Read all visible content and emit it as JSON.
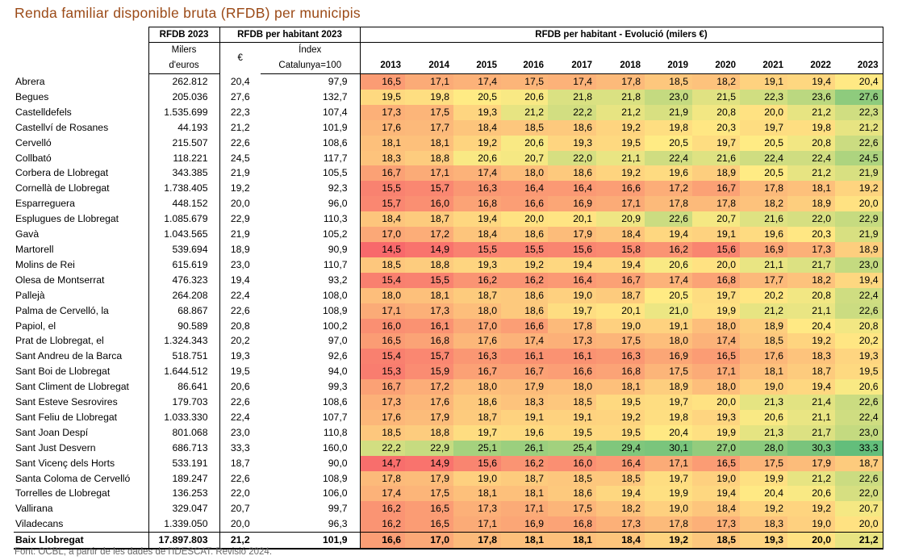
{
  "title": "Renda familiar disponible bruta (RFDB) per municipis",
  "source": "Font: OCBL, a partir de les dades de l'IDESCAT. Revisió 2024.",
  "headers": {
    "rfdb_2023": "RFDB 2023",
    "rfdb_hab_2023": "RFDB per habitant 2023",
    "evolucio": "RFDB per habitant - Evolució (milers €)",
    "milers": "Milers",
    "deuros": "d'euros",
    "euro": "€",
    "index": "Índex",
    "catalunya": "Catalunya=100",
    "years": [
      "2013",
      "2014",
      "2015",
      "2016",
      "2017",
      "2018",
      "2019",
      "2020",
      "2021",
      "2022",
      "2023"
    ]
  },
  "rows": [
    {
      "name": "Abrera",
      "rfdb": "262.812",
      "eur": "20,4",
      "idx": "97,9",
      "evo": [
        "16,5",
        "17,1",
        "17,4",
        "17,5",
        "17,4",
        "17,8",
        "18,5",
        "18,2",
        "19,1",
        "19,4",
        "20,4"
      ]
    },
    {
      "name": "Begues",
      "rfdb": "205.036",
      "eur": "27,6",
      "idx": "132,7",
      "evo": [
        "19,5",
        "19,8",
        "20,5",
        "20,6",
        "21,8",
        "21,8",
        "23,0",
        "21,5",
        "22,3",
        "23,6",
        "27,6"
      ]
    },
    {
      "name": "Castelldefels",
      "rfdb": "1.535.699",
      "eur": "22,3",
      "idx": "107,4",
      "evo": [
        "17,3",
        "17,5",
        "19,3",
        "21,2",
        "22,2",
        "21,2",
        "21,9",
        "20,8",
        "20,0",
        "21,2",
        "22,3"
      ]
    },
    {
      "name": "Castellví de Rosanes",
      "rfdb": "44.193",
      "eur": "21,2",
      "idx": "101,9",
      "evo": [
        "17,6",
        "17,7",
        "18,4",
        "18,5",
        "18,6",
        "19,2",
        "19,8",
        "20,3",
        "19,7",
        "19,8",
        "21,2"
      ]
    },
    {
      "name": "Cervelló",
      "rfdb": "215.507",
      "eur": "22,6",
      "idx": "108,6",
      "evo": [
        "18,1",
        "18,1",
        "19,2",
        "20,6",
        "19,3",
        "19,5",
        "20,5",
        "19,7",
        "20,5",
        "20,8",
        "22,6"
      ]
    },
    {
      "name": "Collbató",
      "rfdb": "118.221",
      "eur": "24,5",
      "idx": "117,7",
      "evo": [
        "18,3",
        "18,8",
        "20,6",
        "20,7",
        "22,0",
        "21,1",
        "22,4",
        "21,6",
        "22,4",
        "22,4",
        "24,5"
      ]
    },
    {
      "name": "Corbera de Llobregat",
      "rfdb": "343.385",
      "eur": "21,9",
      "idx": "105,5",
      "evo": [
        "16,7",
        "17,1",
        "17,4",
        "18,0",
        "18,6",
        "19,2",
        "19,6",
        "18,9",
        "20,5",
        "21,2",
        "21,9"
      ]
    },
    {
      "name": "Cornellà de Llobregat",
      "rfdb": "1.738.405",
      "eur": "19,2",
      "idx": "92,3",
      "evo": [
        "15,5",
        "15,7",
        "16,3",
        "16,4",
        "16,4",
        "16,6",
        "17,2",
        "16,7",
        "17,8",
        "18,1",
        "19,2"
      ]
    },
    {
      "name": "Esparreguera",
      "rfdb": "448.152",
      "eur": "20,0",
      "idx": "96,0",
      "evo": [
        "15,7",
        "16,0",
        "16,8",
        "16,6",
        "16,9",
        "17,1",
        "17,8",
        "17,8",
        "18,2",
        "18,9",
        "20,0"
      ]
    },
    {
      "name": "Esplugues de Llobregat",
      "rfdb": "1.085.679",
      "eur": "22,9",
      "idx": "110,3",
      "evo": [
        "18,4",
        "18,7",
        "19,4",
        "20,0",
        "20,1",
        "20,9",
        "22,6",
        "20,7",
        "21,6",
        "22,0",
        "22,9"
      ]
    },
    {
      "name": "Gavà",
      "rfdb": "1.043.565",
      "eur": "21,9",
      "idx": "105,2",
      "evo": [
        "17,0",
        "17,2",
        "18,4",
        "18,6",
        "17,9",
        "18,4",
        "19,4",
        "19,1",
        "19,6",
        "20,3",
        "21,9"
      ]
    },
    {
      "name": "Martorell",
      "rfdb": "539.694",
      "eur": "18,9",
      "idx": "90,9",
      "evo": [
        "14,5",
        "14,9",
        "15,5",
        "15,5",
        "15,6",
        "15,8",
        "16,2",
        "15,6",
        "16,9",
        "17,3",
        "18,9"
      ]
    },
    {
      "name": "Molins de Rei",
      "rfdb": "615.619",
      "eur": "23,0",
      "idx": "110,7",
      "evo": [
        "18,5",
        "18,8",
        "19,3",
        "19,2",
        "19,4",
        "19,4",
        "20,6",
        "20,0",
        "21,1",
        "21,7",
        "23,0"
      ]
    },
    {
      "name": "Olesa de Montserrat",
      "rfdb": "476.323",
      "eur": "19,4",
      "idx": "93,2",
      "evo": [
        "15,4",
        "15,5",
        "16,2",
        "16,2",
        "16,4",
        "16,7",
        "17,4",
        "16,8",
        "17,7",
        "18,2",
        "19,4"
      ]
    },
    {
      "name": "Pallejà",
      "rfdb": "264.208",
      "eur": "22,4",
      "idx": "108,0",
      "evo": [
        "18,0",
        "18,1",
        "18,7",
        "18,6",
        "19,0",
        "18,7",
        "20,5",
        "19,7",
        "20,2",
        "20,8",
        "22,4"
      ]
    },
    {
      "name": "Palma de Cervelló, la",
      "rfdb": "68.867",
      "eur": "22,6",
      "idx": "108,9",
      "evo": [
        "17,1",
        "17,3",
        "18,0",
        "18,6",
        "19,7",
        "20,1",
        "21,0",
        "19,9",
        "21,2",
        "21,1",
        "22,6"
      ]
    },
    {
      "name": "Papiol, el",
      "rfdb": "90.589",
      "eur": "20,8",
      "idx": "100,2",
      "evo": [
        "16,0",
        "16,1",
        "17,0",
        "16,6",
        "17,8",
        "19,0",
        "19,1",
        "18,0",
        "18,9",
        "20,4",
        "20,8"
      ]
    },
    {
      "name": "Prat de Llobregat, el",
      "rfdb": "1.324.343",
      "eur": "20,2",
      "idx": "97,0",
      "evo": [
        "16,5",
        "16,8",
        "17,6",
        "17,4",
        "17,3",
        "17,5",
        "18,0",
        "17,4",
        "18,5",
        "19,2",
        "20,2"
      ]
    },
    {
      "name": "Sant Andreu de la Barca",
      "rfdb": "518.751",
      "eur": "19,3",
      "idx": "92,6",
      "evo": [
        "15,4",
        "15,7",
        "16,3",
        "16,1",
        "16,1",
        "16,3",
        "16,9",
        "16,5",
        "17,6",
        "18,3",
        "19,3"
      ]
    },
    {
      "name": "Sant Boi de Llobregat",
      "rfdb": "1.644.512",
      "eur": "19,5",
      "idx": "94,0",
      "evo": [
        "15,3",
        "15,9",
        "16,7",
        "16,7",
        "16,6",
        "16,8",
        "17,5",
        "17,1",
        "18,1",
        "18,7",
        "19,5"
      ]
    },
    {
      "name": "Sant Climent de Llobregat",
      "rfdb": "86.641",
      "eur": "20,6",
      "idx": "99,3",
      "evo": [
        "16,7",
        "17,2",
        "18,0",
        "17,9",
        "18,0",
        "18,1",
        "18,9",
        "18,0",
        "19,0",
        "19,4",
        "20,6"
      ]
    },
    {
      "name": "Sant Esteve Sesrovires",
      "rfdb": "179.703",
      "eur": "22,6",
      "idx": "108,6",
      "evo": [
        "17,3",
        "17,6",
        "18,6",
        "18,3",
        "18,5",
        "19,5",
        "19,7",
        "20,0",
        "21,3",
        "21,4",
        "22,6"
      ]
    },
    {
      "name": "Sant Feliu de Llobregat",
      "rfdb": "1.033.330",
      "eur": "22,4",
      "idx": "107,7",
      "evo": [
        "17,6",
        "17,9",
        "18,7",
        "19,1",
        "19,1",
        "19,2",
        "19,8",
        "19,3",
        "20,6",
        "21,1",
        "22,4"
      ]
    },
    {
      "name": "Sant Joan Despí",
      "rfdb": "801.068",
      "eur": "23,0",
      "idx": "110,8",
      "evo": [
        "18,5",
        "18,8",
        "19,7",
        "19,6",
        "19,5",
        "19,5",
        "20,4",
        "19,9",
        "21,3",
        "21,7",
        "23,0"
      ]
    },
    {
      "name": "Sant Just Desvern",
      "rfdb": "686.713",
      "eur": "33,3",
      "idx": "160,0",
      "evo": [
        "22,2",
        "22,9",
        "25,1",
        "26,1",
        "25,4",
        "29,4",
        "30,1",
        "27,0",
        "28,0",
        "30,3",
        "33,3"
      ]
    },
    {
      "name": "Sant Vicenç dels Horts",
      "rfdb": "533.191",
      "eur": "18,7",
      "idx": "90,0",
      "evo": [
        "14,7",
        "14,9",
        "15,6",
        "16,2",
        "16,0",
        "16,4",
        "17,1",
        "16,5",
        "17,5",
        "17,9",
        "18,7"
      ]
    },
    {
      "name": "Santa Coloma de Cervelló",
      "rfdb": "189.247",
      "eur": "22,6",
      "idx": "108,9",
      "evo": [
        "17,8",
        "17,9",
        "19,0",
        "18,7",
        "18,5",
        "18,5",
        "19,7",
        "19,0",
        "19,9",
        "21,2",
        "22,6"
      ]
    },
    {
      "name": "Torrelles de Llobregat",
      "rfdb": "136.253",
      "eur": "22,0",
      "idx": "106,0",
      "evo": [
        "17,4",
        "17,5",
        "18,1",
        "18,1",
        "18,6",
        "19,4",
        "19,9",
        "19,4",
        "20,4",
        "20,6",
        "22,0"
      ]
    },
    {
      "name": "Vallirana",
      "rfdb": "329.047",
      "eur": "20,7",
      "idx": "99,7",
      "evo": [
        "16,2",
        "16,5",
        "17,3",
        "17,1",
        "17,5",
        "18,2",
        "19,0",
        "18,4",
        "19,2",
        "19,2",
        "20,7"
      ]
    },
    {
      "name": "Viladecans",
      "rfdb": "1.339.050",
      "eur": "20,0",
      "idx": "96,3",
      "evo": [
        "16,2",
        "16,5",
        "17,1",
        "16,9",
        "16,8",
        "17,3",
        "17,8",
        "17,3",
        "18,3",
        "19,0",
        "20,0"
      ]
    }
  ],
  "total": {
    "name": "Baix Llobregat",
    "rfdb": "17.897.803",
    "eur": "21,2",
    "idx": "101,9",
    "evo": [
      "16,6",
      "17,0",
      "17,8",
      "18,1",
      "18,1",
      "18,4",
      "19,2",
      "18,5",
      "19,3",
      "20,0",
      "21,2"
    ]
  },
  "heat_colors": [
    "#f8696b",
    "#fcb579",
    "#ffeb84",
    "#a3d17e",
    "#63be7b"
  ],
  "title_color": "#9b4a17"
}
